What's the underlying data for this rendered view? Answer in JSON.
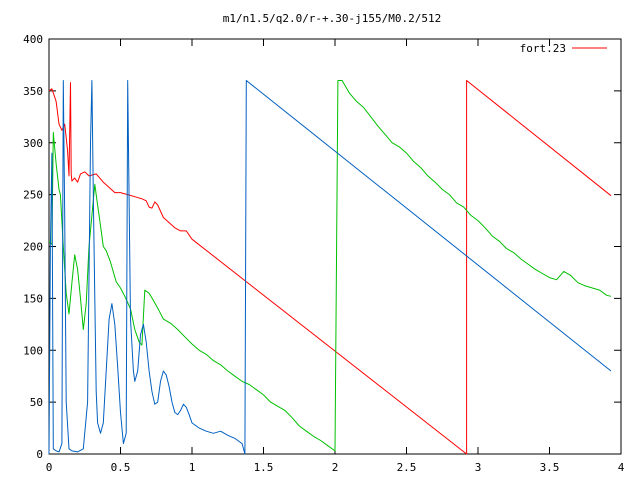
{
  "chart_data": {
    "type": "line",
    "title": "m1/n1.5/q2.0/r-+.30-j155/M0.2/512",
    "xlabel": "",
    "ylabel": "",
    "xlim": [
      0,
      4
    ],
    "ylim": [
      0,
      400
    ],
    "x_ticks": [
      0,
      0.5,
      1,
      1.5,
      2,
      2.5,
      3,
      3.5,
      4
    ],
    "x_tick_labels": [
      "0",
      "0.5",
      "1",
      "1.5",
      "2",
      "2.5",
      "3",
      "3.5",
      "4"
    ],
    "y_ticks": [
      0,
      50,
      100,
      150,
      200,
      250,
      300,
      350,
      400
    ],
    "y_tick_labels": [
      "0",
      "50",
      "100",
      "150",
      "200",
      "250",
      "300",
      "350",
      "400"
    ],
    "grid": false,
    "legend": {
      "position": "top-right",
      "entries": [
        "fort.23"
      ]
    },
    "series": [
      {
        "name": "fort.23",
        "color": "#ff0000",
        "points": [
          [
            0.0,
            350
          ],
          [
            0.02,
            352
          ],
          [
            0.05,
            340
          ],
          [
            0.07,
            318
          ],
          [
            0.09,
            312
          ],
          [
            0.11,
            318
          ],
          [
            0.12,
            305
          ],
          [
            0.13,
            292
          ],
          [
            0.14,
            268
          ],
          [
            0.15,
            358
          ],
          [
            0.155,
            270
          ],
          [
            0.16,
            263
          ],
          [
            0.18,
            266
          ],
          [
            0.2,
            262
          ],
          [
            0.22,
            270
          ],
          [
            0.25,
            272
          ],
          [
            0.28,
            268
          ],
          [
            0.33,
            270
          ],
          [
            0.38,
            262
          ],
          [
            0.42,
            257
          ],
          [
            0.46,
            252
          ],
          [
            0.5,
            252
          ],
          [
            0.55,
            250
          ],
          [
            0.6,
            248
          ],
          [
            0.65,
            246
          ],
          [
            0.68,
            244
          ],
          [
            0.7,
            238
          ],
          [
            0.72,
            237
          ],
          [
            0.74,
            243
          ],
          [
            0.76,
            240
          ],
          [
            0.8,
            228
          ],
          [
            0.84,
            223
          ],
          [
            0.88,
            218
          ],
          [
            0.92,
            215
          ],
          [
            0.96,
            215
          ],
          [
            1.0,
            207
          ],
          [
            2.92,
            0
          ],
          [
            2.92,
            360
          ],
          [
            3.93,
            249
          ]
        ]
      },
      {
        "name": "",
        "color": "#00c000",
        "points": [
          [
            0.0,
            205
          ],
          [
            0.02,
            202
          ],
          [
            0.03,
            310
          ],
          [
            0.05,
            280
          ],
          [
            0.07,
            255
          ],
          [
            0.08,
            250
          ],
          [
            0.1,
            200
          ],
          [
            0.12,
            155
          ],
          [
            0.14,
            135
          ],
          [
            0.16,
            165
          ],
          [
            0.18,
            192
          ],
          [
            0.2,
            178
          ],
          [
            0.22,
            150
          ],
          [
            0.24,
            120
          ],
          [
            0.26,
            145
          ],
          [
            0.28,
            200
          ],
          [
            0.3,
            230
          ],
          [
            0.32,
            260
          ],
          [
            0.34,
            240
          ],
          [
            0.36,
            220
          ],
          [
            0.38,
            200
          ],
          [
            0.4,
            196
          ],
          [
            0.43,
            185
          ],
          [
            0.47,
            166
          ],
          [
            0.5,
            160
          ],
          [
            0.53,
            152
          ],
          [
            0.57,
            140
          ],
          [
            0.6,
            120
          ],
          [
            0.63,
            108
          ],
          [
            0.65,
            105
          ],
          [
            0.67,
            158
          ],
          [
            0.7,
            155
          ],
          [
            0.73,
            148
          ],
          [
            0.77,
            138
          ],
          [
            0.8,
            130
          ],
          [
            0.85,
            126
          ],
          [
            0.9,
            120
          ],
          [
            0.95,
            113
          ],
          [
            1.0,
            106
          ],
          [
            1.05,
            100
          ],
          [
            1.1,
            96
          ],
          [
            1.15,
            90
          ],
          [
            1.2,
            86
          ],
          [
            1.25,
            80
          ],
          [
            1.3,
            75
          ],
          [
            1.35,
            70
          ],
          [
            1.4,
            67
          ],
          [
            1.45,
            62
          ],
          [
            1.5,
            57
          ],
          [
            1.55,
            50
          ],
          [
            1.6,
            46
          ],
          [
            1.65,
            42
          ],
          [
            1.7,
            35
          ],
          [
            1.75,
            27
          ],
          [
            1.8,
            22
          ],
          [
            1.85,
            17
          ],
          [
            1.9,
            13
          ],
          [
            1.95,
            8
          ],
          [
            2.0,
            3
          ],
          [
            2.02,
            360
          ],
          [
            2.05,
            360
          ],
          [
            2.1,
            348
          ],
          [
            2.15,
            340
          ],
          [
            2.2,
            334
          ],
          [
            2.25,
            325
          ],
          [
            2.3,
            316
          ],
          [
            2.35,
            308
          ],
          [
            2.4,
            300
          ],
          [
            2.45,
            296
          ],
          [
            2.5,
            290
          ],
          [
            2.55,
            282
          ],
          [
            2.6,
            276
          ],
          [
            2.65,
            268
          ],
          [
            2.7,
            262
          ],
          [
            2.75,
            255
          ],
          [
            2.8,
            250
          ],
          [
            2.85,
            242
          ],
          [
            2.9,
            238
          ],
          [
            2.95,
            230
          ],
          [
            3.0,
            225
          ],
          [
            3.05,
            218
          ],
          [
            3.1,
            210
          ],
          [
            3.15,
            205
          ],
          [
            3.2,
            198
          ],
          [
            3.25,
            194
          ],
          [
            3.3,
            188
          ],
          [
            3.35,
            183
          ],
          [
            3.4,
            178
          ],
          [
            3.45,
            174
          ],
          [
            3.5,
            170
          ],
          [
            3.55,
            168
          ],
          [
            3.6,
            176
          ],
          [
            3.65,
            172
          ],
          [
            3.7,
            165
          ],
          [
            3.75,
            162
          ],
          [
            3.8,
            160
          ],
          [
            3.85,
            158
          ],
          [
            3.9,
            153
          ],
          [
            3.93,
            152
          ]
        ]
      },
      {
        "name": "",
        "color": "#0060c0",
        "points": [
          [
            0.0,
            0
          ],
          [
            0.01,
            200
          ],
          [
            0.02,
            290
          ],
          [
            0.03,
            5
          ],
          [
            0.05,
            3
          ],
          [
            0.07,
            2
          ],
          [
            0.09,
            10
          ],
          [
            0.1,
            360
          ],
          [
            0.11,
            230
          ],
          [
            0.12,
            50
          ],
          [
            0.14,
            5
          ],
          [
            0.16,
            3
          ],
          [
            0.2,
            2
          ],
          [
            0.24,
            5
          ],
          [
            0.27,
            50
          ],
          [
            0.29,
            300
          ],
          [
            0.3,
            360
          ],
          [
            0.31,
            250
          ],
          [
            0.32,
            150
          ],
          [
            0.33,
            60
          ],
          [
            0.34,
            30
          ],
          [
            0.36,
            20
          ],
          [
            0.38,
            30
          ],
          [
            0.4,
            80
          ],
          [
            0.42,
            130
          ],
          [
            0.44,
            145
          ],
          [
            0.46,
            125
          ],
          [
            0.48,
            85
          ],
          [
            0.5,
            40
          ],
          [
            0.52,
            10
          ],
          [
            0.54,
            20
          ],
          [
            0.55,
            360
          ],
          [
            0.57,
            130
          ],
          [
            0.59,
            80
          ],
          [
            0.6,
            70
          ],
          [
            0.62,
            80
          ],
          [
            0.64,
            115
          ],
          [
            0.66,
            125
          ],
          [
            0.68,
            108
          ],
          [
            0.7,
            80
          ],
          [
            0.72,
            60
          ],
          [
            0.74,
            48
          ],
          [
            0.76,
            50
          ],
          [
            0.78,
            70
          ],
          [
            0.8,
            80
          ],
          [
            0.82,
            76
          ],
          [
            0.84,
            65
          ],
          [
            0.86,
            50
          ],
          [
            0.88,
            40
          ],
          [
            0.9,
            38
          ],
          [
            0.92,
            42
          ],
          [
            0.94,
            48
          ],
          [
            0.96,
            45
          ],
          [
            0.98,
            38
          ],
          [
            1.0,
            30
          ],
          [
            1.05,
            25
          ],
          [
            1.1,
            22
          ],
          [
            1.15,
            20
          ],
          [
            1.2,
            22
          ],
          [
            1.25,
            18
          ],
          [
            1.3,
            15
          ],
          [
            1.35,
            10
          ],
          [
            1.37,
            0
          ],
          [
            1.38,
            360
          ],
          [
            3.93,
            80
          ]
        ]
      }
    ]
  }
}
